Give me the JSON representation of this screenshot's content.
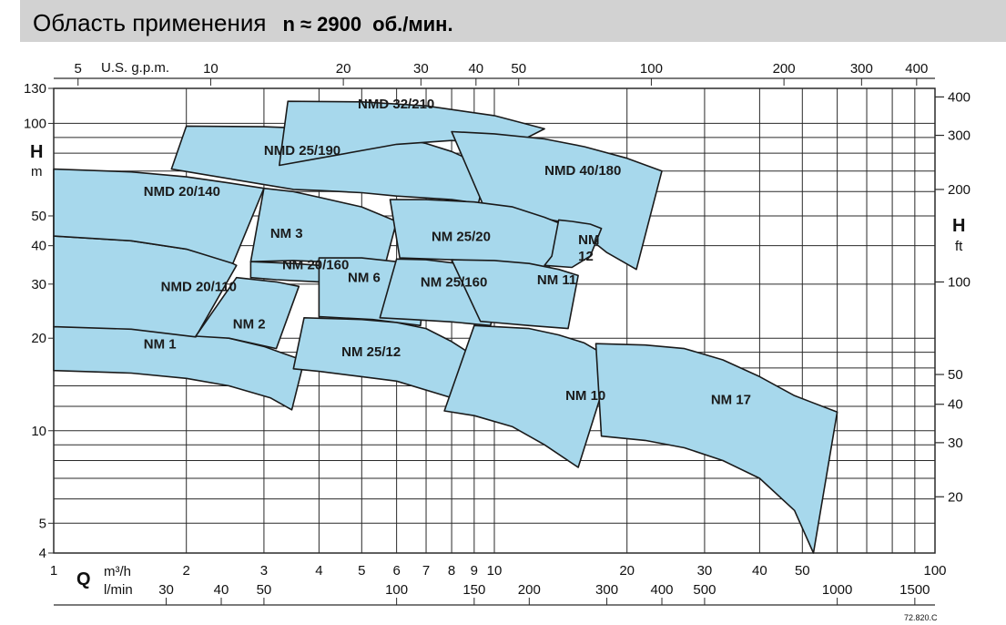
{
  "title": {
    "main": "Область применения",
    "speed": "n ≈ 2900",
    "unit": "об./мин."
  },
  "colors": {
    "region_fill": "#a7d8ec",
    "region_stroke": "#1a1a1a",
    "grid": "#2a2a2a",
    "title_bar": "#d2d2d2"
  },
  "chart_data": {
    "type": "area",
    "title": "Область применения n ≈ 2900 об./мин.",
    "x_scale": "log",
    "y_scale": "log",
    "xlim": [
      1,
      100
    ],
    "ylim": [
      4,
      130
    ],
    "xlabel": "Q",
    "x_unit_primary": "m³/h",
    "x_unit_secondary": "l/min",
    "x_unit_top": "U.S. g.p.m.",
    "ylabel": "H",
    "y_unit_left": "m",
    "y_unit_right": "ft",
    "grid": true,
    "x_ticks_m3h": [
      1,
      2,
      3,
      4,
      5,
      6,
      7,
      8,
      9,
      10,
      20,
      30,
      40,
      50,
      100
    ],
    "x_ticks_lmin": [
      30,
      40,
      50,
      100,
      150,
      200,
      300,
      400,
      500,
      1000,
      1500
    ],
    "x_ticks_usgpm": [
      5,
      10,
      20,
      30,
      40,
      50,
      100,
      200,
      300,
      400
    ],
    "y_ticks_m": [
      4,
      5,
      10,
      20,
      30,
      40,
      50,
      100,
      130
    ],
    "y_ticks_ft": [
      20,
      30,
      40,
      50,
      100,
      200,
      300,
      400
    ],
    "code": "72.820.C",
    "regions": [
      {
        "name": "NM 1",
        "label_at": [
          1.6,
          18.5
        ],
        "outline": [
          [
            1,
            21.8
          ],
          [
            1.5,
            21.6
          ],
          [
            2,
            21.0
          ],
          [
            2.5,
            20.0
          ],
          [
            3,
            18.8
          ],
          [
            3.3,
            17.9
          ],
          [
            3.7,
            16.9
          ],
          [
            3.47,
            11.7
          ],
          [
            3.1,
            12.8
          ],
          [
            2.5,
            14.0
          ],
          [
            2,
            14.8
          ],
          [
            1.5,
            15.4
          ],
          [
            1,
            15.7
          ]
        ]
      },
      {
        "name": "NMD 20/110",
        "label_at": [
          1.75,
          28.5
        ],
        "outline": [
          [
            1,
            43.0
          ],
          [
            1.5,
            41.5
          ],
          [
            2,
            39.0
          ],
          [
            2.5,
            35.5
          ],
          [
            2.6,
            34.5
          ],
          [
            2.1,
            20.2
          ],
          [
            1.5,
            21.4
          ],
          [
            1,
            21.8
          ]
        ]
      },
      {
        "name": "NMD 20/140",
        "label_at": [
          1.6,
          58
        ],
        "outline": [
          [
            1,
            71
          ],
          [
            1.5,
            69.5
          ],
          [
            2,
            67
          ],
          [
            2.5,
            64
          ],
          [
            3.0,
            61.5
          ],
          [
            2.55,
            35.0
          ],
          [
            2,
            39.0
          ],
          [
            1.5,
            41.5
          ],
          [
            1,
            43
          ]
        ]
      },
      {
        "name": "NM 2",
        "label_at": [
          2.55,
          21.5
        ],
        "outline": [
          [
            2.6,
            31.5
          ],
          [
            3.2,
            30.5
          ],
          [
            3.6,
            29.5
          ],
          [
            3.2,
            18.5
          ],
          [
            2.5,
            20.0
          ],
          [
            2.1,
            20.3
          ]
        ]
      },
      {
        "name": "NM 3",
        "label_at": [
          3.1,
          42.5
        ],
        "outline": [
          [
            3.0,
            61.5
          ],
          [
            3.5,
            60.0
          ],
          [
            4,
            57.5
          ],
          [
            5,
            53.5
          ],
          [
            6.0,
            48.0
          ],
          [
            5.6,
            33.0
          ],
          [
            5,
            34.5
          ],
          [
            4,
            35.5
          ],
          [
            3.5,
            35.8
          ],
          [
            2.8,
            35.5
          ]
        ]
      },
      {
        "name": "NM 20/160",
        "label_at": [
          3.3,
          33.5
        ],
        "outline": [
          [
            2.8,
            35.5
          ],
          [
            3.5,
            35.0
          ],
          [
            4,
            34.5
          ],
          [
            5,
            32.5
          ],
          [
            5.6,
            30.0
          ],
          [
            5.5,
            29.5
          ],
          [
            4,
            30.5
          ],
          [
            3.2,
            31.0
          ],
          [
            2.8,
            31.5
          ]
        ]
      },
      {
        "name": "NM 6",
        "label_at": [
          4.65,
          30.5
        ],
        "outline": [
          [
            4.0,
            36.5
          ],
          [
            5,
            36.5
          ],
          [
            6,
            35.5
          ],
          [
            7,
            33.0
          ],
          [
            6.8,
            22.0
          ],
          [
            5.3,
            23.0
          ],
          [
            4.0,
            23.5
          ]
        ]
      },
      {
        "name": "NM 25/12",
        "label_at": [
          4.5,
          17.5
        ],
        "outline": [
          [
            3.7,
            23.3
          ],
          [
            5,
            23.0
          ],
          [
            6,
            22.5
          ],
          [
            7,
            21.5
          ],
          [
            8,
            19.5
          ],
          [
            9,
            17.5
          ],
          [
            9.6,
            16.0
          ],
          [
            9.1,
            11.7
          ],
          [
            8,
            12.8
          ],
          [
            6,
            14.5
          ],
          [
            5,
            15.0
          ],
          [
            4,
            15.6
          ],
          [
            3.5,
            15.9
          ]
        ]
      },
      {
        "name": "NMD 25/190",
        "label_at": [
          3.0,
          79
        ],
        "outline": [
          [
            2.0,
            98
          ],
          [
            3,
            97.5
          ],
          [
            4,
            96
          ],
          [
            5,
            93
          ],
          [
            6,
            90
          ],
          [
            7,
            86
          ],
          [
            8,
            81
          ],
          [
            9,
            75
          ],
          [
            9.6,
            70
          ],
          [
            9.2,
            55
          ],
          [
            8,
            56.5
          ],
          [
            6,
            58
          ],
          [
            5,
            59.5
          ],
          [
            4,
            60.5
          ],
          [
            3.5,
            61.0
          ],
          [
            1.85,
            71
          ]
        ]
      },
      {
        "name": "NMD 32/210",
        "label_at": [
          4.9,
          112
        ],
        "outline": [
          [
            3.4,
            118
          ],
          [
            5,
            117.5
          ],
          [
            7,
            114
          ],
          [
            10,
            106
          ],
          [
            13,
            96
          ],
          [
            11,
            85
          ],
          [
            8,
            88
          ],
          [
            6,
            85.5
          ],
          [
            4,
            77
          ],
          [
            3.25,
            73
          ]
        ]
      },
      {
        "name": "NMD 40/180",
        "label_at": [
          13,
          68
        ],
        "outline": [
          [
            8.0,
            94
          ],
          [
            10,
            92.5
          ],
          [
            13,
            89
          ],
          [
            16,
            84
          ],
          [
            20,
            77
          ],
          [
            24,
            70
          ],
          [
            21,
            33.5
          ],
          [
            18,
            38.0
          ],
          [
            16,
            43.5
          ],
          [
            14,
            48
          ],
          [
            11,
            51.5
          ],
          [
            9.5,
            53
          ]
        ]
      },
      {
        "name": "NM 25/20",
        "label_at": [
          7.2,
          41.5
        ],
        "outline": [
          [
            5.8,
            56.5
          ],
          [
            7,
            56.5
          ],
          [
            9,
            55.5
          ],
          [
            11,
            53.5
          ],
          [
            13,
            49.5
          ],
          [
            14.5,
            46.5
          ],
          [
            13.2,
            33.0
          ],
          [
            11,
            34.5
          ],
          [
            8,
            36.0
          ],
          [
            6.1,
            36.5
          ]
        ]
      },
      {
        "name": "NM 12",
        "label_at": [
          15.5,
          40.5
        ],
        "outline": [
          [
            14.0,
            48.5
          ],
          [
            15,
            48.0
          ],
          [
            16.5,
            47.0
          ],
          [
            17.5,
            45.5
          ],
          [
            16.5,
            37.0
          ],
          [
            15.0,
            34.0
          ],
          [
            13.0,
            34.5
          ],
          [
            13.5,
            37.0
          ]
        ]
      },
      {
        "name": "NM 25/160",
        "label_at": [
          6.8,
          29.5
        ],
        "outline": [
          [
            6.0,
            36.2
          ],
          [
            7,
            36.0
          ],
          [
            8,
            35.2
          ],
          [
            9,
            34.2
          ],
          [
            10,
            33.0
          ],
          [
            10.5,
            32.5
          ],
          [
            9.8,
            22.0
          ],
          [
            8,
            22.6
          ],
          [
            6.5,
            23.0
          ],
          [
            5.5,
            23.3
          ]
        ]
      },
      {
        "name": "NM 11",
        "label_at": [
          12.5,
          30.0
        ],
        "outline": [
          [
            8.0,
            36.0
          ],
          [
            10,
            35.8
          ],
          [
            12,
            35.0
          ],
          [
            14,
            33.5
          ],
          [
            15.5,
            32.0
          ],
          [
            14.7,
            21.5
          ],
          [
            12,
            22.0
          ],
          [
            10,
            22.5
          ],
          [
            9.3,
            22.7
          ]
        ]
      },
      {
        "name": "NM 10",
        "label_at": [
          14.5,
          12.6
        ],
        "outline": [
          [
            9.0,
            22.0
          ],
          [
            12,
            21.5
          ],
          [
            14,
            20.5
          ],
          [
            16,
            19.3
          ],
          [
            18,
            17.5
          ],
          [
            18.5,
            17.0
          ],
          [
            15.5,
            7.6
          ],
          [
            13,
            9.0
          ],
          [
            11,
            10.3
          ],
          [
            9,
            11.2
          ],
          [
            7.7,
            11.6
          ]
        ]
      },
      {
        "name": "NM 17",
        "label_at": [
          31,
          12.2
        ],
        "outline": [
          [
            17.0,
            19.2
          ],
          [
            22,
            19.0
          ],
          [
            27,
            18.5
          ],
          [
            33,
            17.0
          ],
          [
            40,
            15.0
          ],
          [
            48,
            13.0
          ],
          [
            60,
            11.5
          ],
          [
            53,
            4.0
          ],
          [
            48,
            5.5
          ],
          [
            40,
            7.0
          ],
          [
            33,
            8.0
          ],
          [
            27,
            8.8
          ],
          [
            22,
            9.3
          ],
          [
            17.5,
            9.6
          ]
        ]
      }
    ]
  }
}
